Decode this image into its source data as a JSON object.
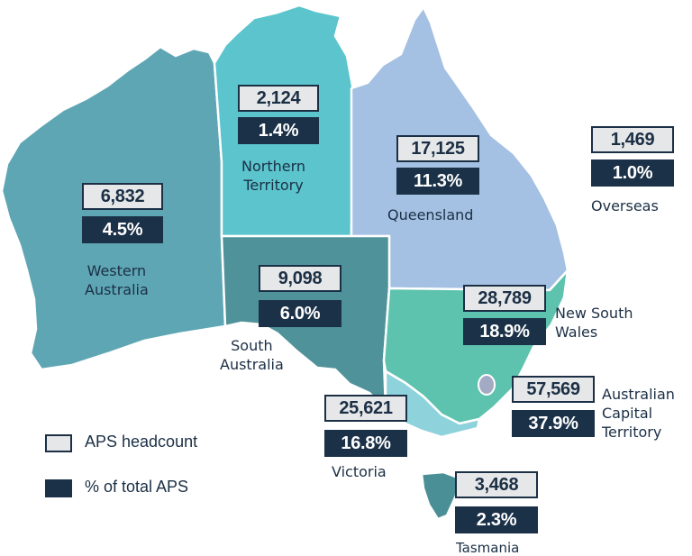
{
  "colors": {
    "western_australia": "#5fa6b4",
    "northern_territory": "#5bc4cc",
    "queensland": "#a4c0e2",
    "south_australia": "#50929a",
    "new_south_wales": "#5ec3ae",
    "victoria": "#8ed2dc",
    "tasmania": "#4b8f96",
    "act": "#a3aac4",
    "headcount_fill": "#e6e7e8",
    "percent_fill": "#1b3148"
  },
  "regions": [
    {
      "id": "wa",
      "name": "Western Australia",
      "headcount": "6,832",
      "percent": "4.5%"
    },
    {
      "id": "nt",
      "name": "Northern Territory",
      "headcount": "2,124",
      "percent": "1.4%"
    },
    {
      "id": "qld",
      "name": "Queensland",
      "headcount": "17,125",
      "percent": "11.3%"
    },
    {
      "id": "overseas",
      "name": "Overseas",
      "headcount": "1,469",
      "percent": "1.0%"
    },
    {
      "id": "sa",
      "name": "South Australia",
      "headcount": "9,098",
      "percent": "6.0%"
    },
    {
      "id": "nsw",
      "name": "New South Wales",
      "headcount": "28,789",
      "percent": "18.9%"
    },
    {
      "id": "act",
      "name": "Australian Capital Territory",
      "headcount": "57,569",
      "percent": "37.9%"
    },
    {
      "id": "vic",
      "name": "Victoria",
      "headcount": "25,621",
      "percent": "16.8%"
    },
    {
      "id": "tas",
      "name": "Tasmania",
      "headcount": "3,468",
      "percent": "2.3%"
    }
  ],
  "labels": {
    "wa_line1": "Western",
    "wa_line2": "Australia",
    "nt_line1": "Northern",
    "nt_line2": "Territory",
    "qld": "Queensland",
    "overseas": "Overseas",
    "sa_line1": "South",
    "sa_line2": "Australia",
    "nsw_line1": "New South",
    "nsw_line2": "Wales",
    "act_line1": "Australian",
    "act_line2": "Capital",
    "act_line3": "Territory",
    "vic": "Victoria",
    "tas": "Tasmania"
  },
  "legend": {
    "headcount": "APS headcount",
    "percent": "% of total APS"
  }
}
